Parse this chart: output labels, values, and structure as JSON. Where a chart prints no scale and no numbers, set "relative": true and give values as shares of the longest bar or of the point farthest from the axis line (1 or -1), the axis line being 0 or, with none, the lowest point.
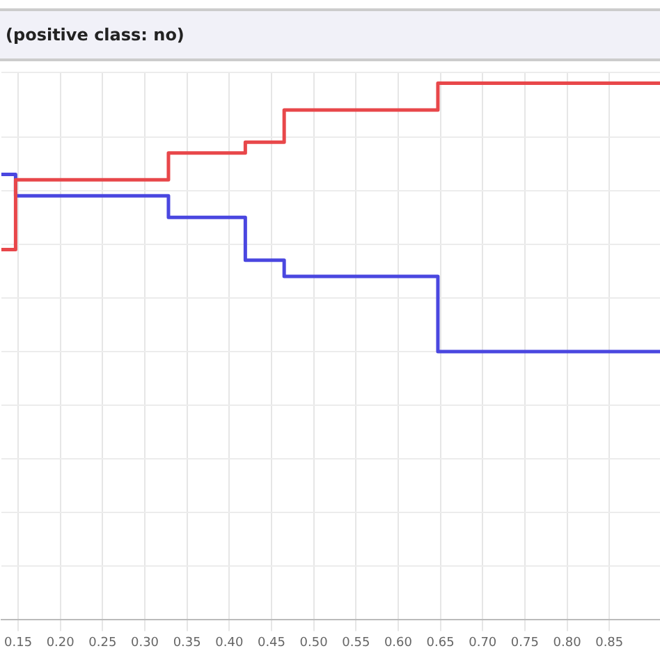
{
  "chart_data": {
    "type": "step",
    "title": "(positive class: no)",
    "relative": true,
    "x": [
      0.13,
      0.147,
      0.328,
      0.419,
      0.465,
      0.647,
      0.91
    ],
    "series": [
      {
        "color": "#e8474a",
        "values": [
          0.69,
          0.82,
          0.87,
          0.89,
          0.95,
          1,
          1
        ]
      },
      {
        "color": "#4a47e0",
        "values": [
          0.83,
          0.79,
          0.75,
          0.67,
          0.64,
          0.5,
          0.5
        ]
      }
    ],
    "xlim": [
      0.13,
      0.91
    ],
    "xticks": [
      {
        "value": 0.15,
        "label": "0.15"
      },
      {
        "value": 0.2,
        "label": "0.20"
      },
      {
        "value": 0.25,
        "label": "0.25"
      },
      {
        "value": 0.3,
        "label": "0.30"
      },
      {
        "value": 0.35,
        "label": "0.35"
      },
      {
        "value": 0.4,
        "label": "0.40"
      },
      {
        "value": 0.45,
        "label": "0.45"
      },
      {
        "value": 0.5,
        "label": "0.50"
      },
      {
        "value": 0.55,
        "label": "0.55"
      },
      {
        "value": 0.6,
        "label": "0.60"
      },
      {
        "value": 0.65,
        "label": "0.65"
      },
      {
        "value": 0.7,
        "label": "0.70"
      },
      {
        "value": 0.75,
        "label": "0.75"
      },
      {
        "value": 0.8,
        "label": "0.80"
      },
      {
        "value": 0.85,
        "label": "0.85"
      }
    ],
    "grid": true,
    "legend": false
  }
}
